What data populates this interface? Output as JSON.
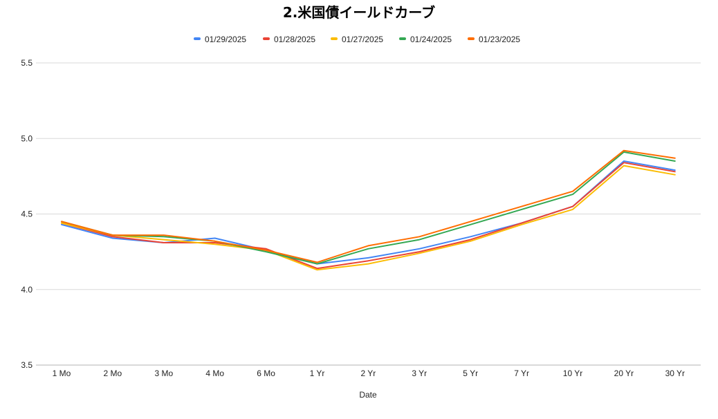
{
  "chart_data": {
    "type": "line",
    "title": "2.米国債イールドカーブ",
    "xlabel": "Date",
    "ylabel": "",
    "categories": [
      "1 Mo",
      "2 Mo",
      "3 Mo",
      "4 Mo",
      "6 Mo",
      "1 Yr",
      "2 Yr",
      "3 Yr",
      "5 Yr",
      "7 Yr",
      "10 Yr",
      "20 Yr",
      "30 Yr"
    ],
    "ylim": [
      3.5,
      5.5
    ],
    "yticks": [
      "3.5",
      "4.0",
      "4.5",
      "5.0",
      "5.5"
    ],
    "grid": true,
    "legend_position": "top",
    "series": [
      {
        "name": "01/29/2025",
        "color": "#4285f4",
        "values": [
          4.43,
          4.34,
          4.31,
          4.34,
          4.26,
          4.17,
          4.21,
          4.27,
          4.35,
          4.44,
          4.55,
          4.85,
          4.79
        ]
      },
      {
        "name": "01/28/2025",
        "color": "#ea4335",
        "values": [
          4.44,
          4.35,
          4.31,
          4.31,
          4.27,
          4.14,
          4.19,
          4.25,
          4.33,
          4.44,
          4.55,
          4.84,
          4.78
        ]
      },
      {
        "name": "01/27/2025",
        "color": "#fbbc04",
        "values": [
          4.44,
          4.36,
          4.33,
          4.3,
          4.26,
          4.13,
          4.17,
          4.24,
          4.32,
          4.43,
          4.53,
          4.82,
          4.76
        ]
      },
      {
        "name": "01/24/2025",
        "color": "#34a853",
        "values": [
          4.45,
          4.36,
          4.35,
          4.32,
          4.25,
          4.17,
          4.27,
          4.33,
          4.43,
          4.53,
          4.63,
          4.91,
          4.85
        ]
      },
      {
        "name": "01/23/2025",
        "color": "#ff6d01",
        "values": [
          4.45,
          4.36,
          4.36,
          4.32,
          4.26,
          4.18,
          4.29,
          4.35,
          4.45,
          4.55,
          4.65,
          4.92,
          4.87
        ]
      }
    ]
  }
}
